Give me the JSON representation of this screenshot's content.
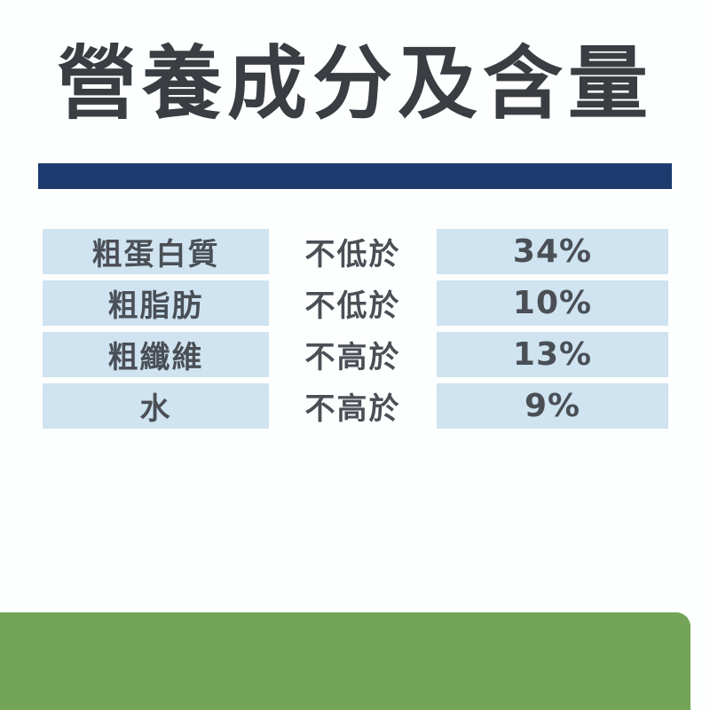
{
  "page": {
    "title": "營養成分及含量",
    "colors": {
      "title_text": "#3a3d42",
      "divider_bar": "#1e3a6e",
      "cell_background": "#cfe3f0",
      "table_text": "#4a4f56",
      "footer_bar": "#73a457"
    }
  },
  "table": {
    "rows": [
      {
        "nutrient": "粗蛋白質",
        "condition": "不低於",
        "value": "34%"
      },
      {
        "nutrient": "粗脂肪",
        "condition": "不低於",
        "value": "10%"
      },
      {
        "nutrient": "粗纖維",
        "condition": "不高於",
        "value": "13%"
      },
      {
        "nutrient": "水",
        "condition": "不高於",
        "value": "9%"
      }
    ]
  }
}
